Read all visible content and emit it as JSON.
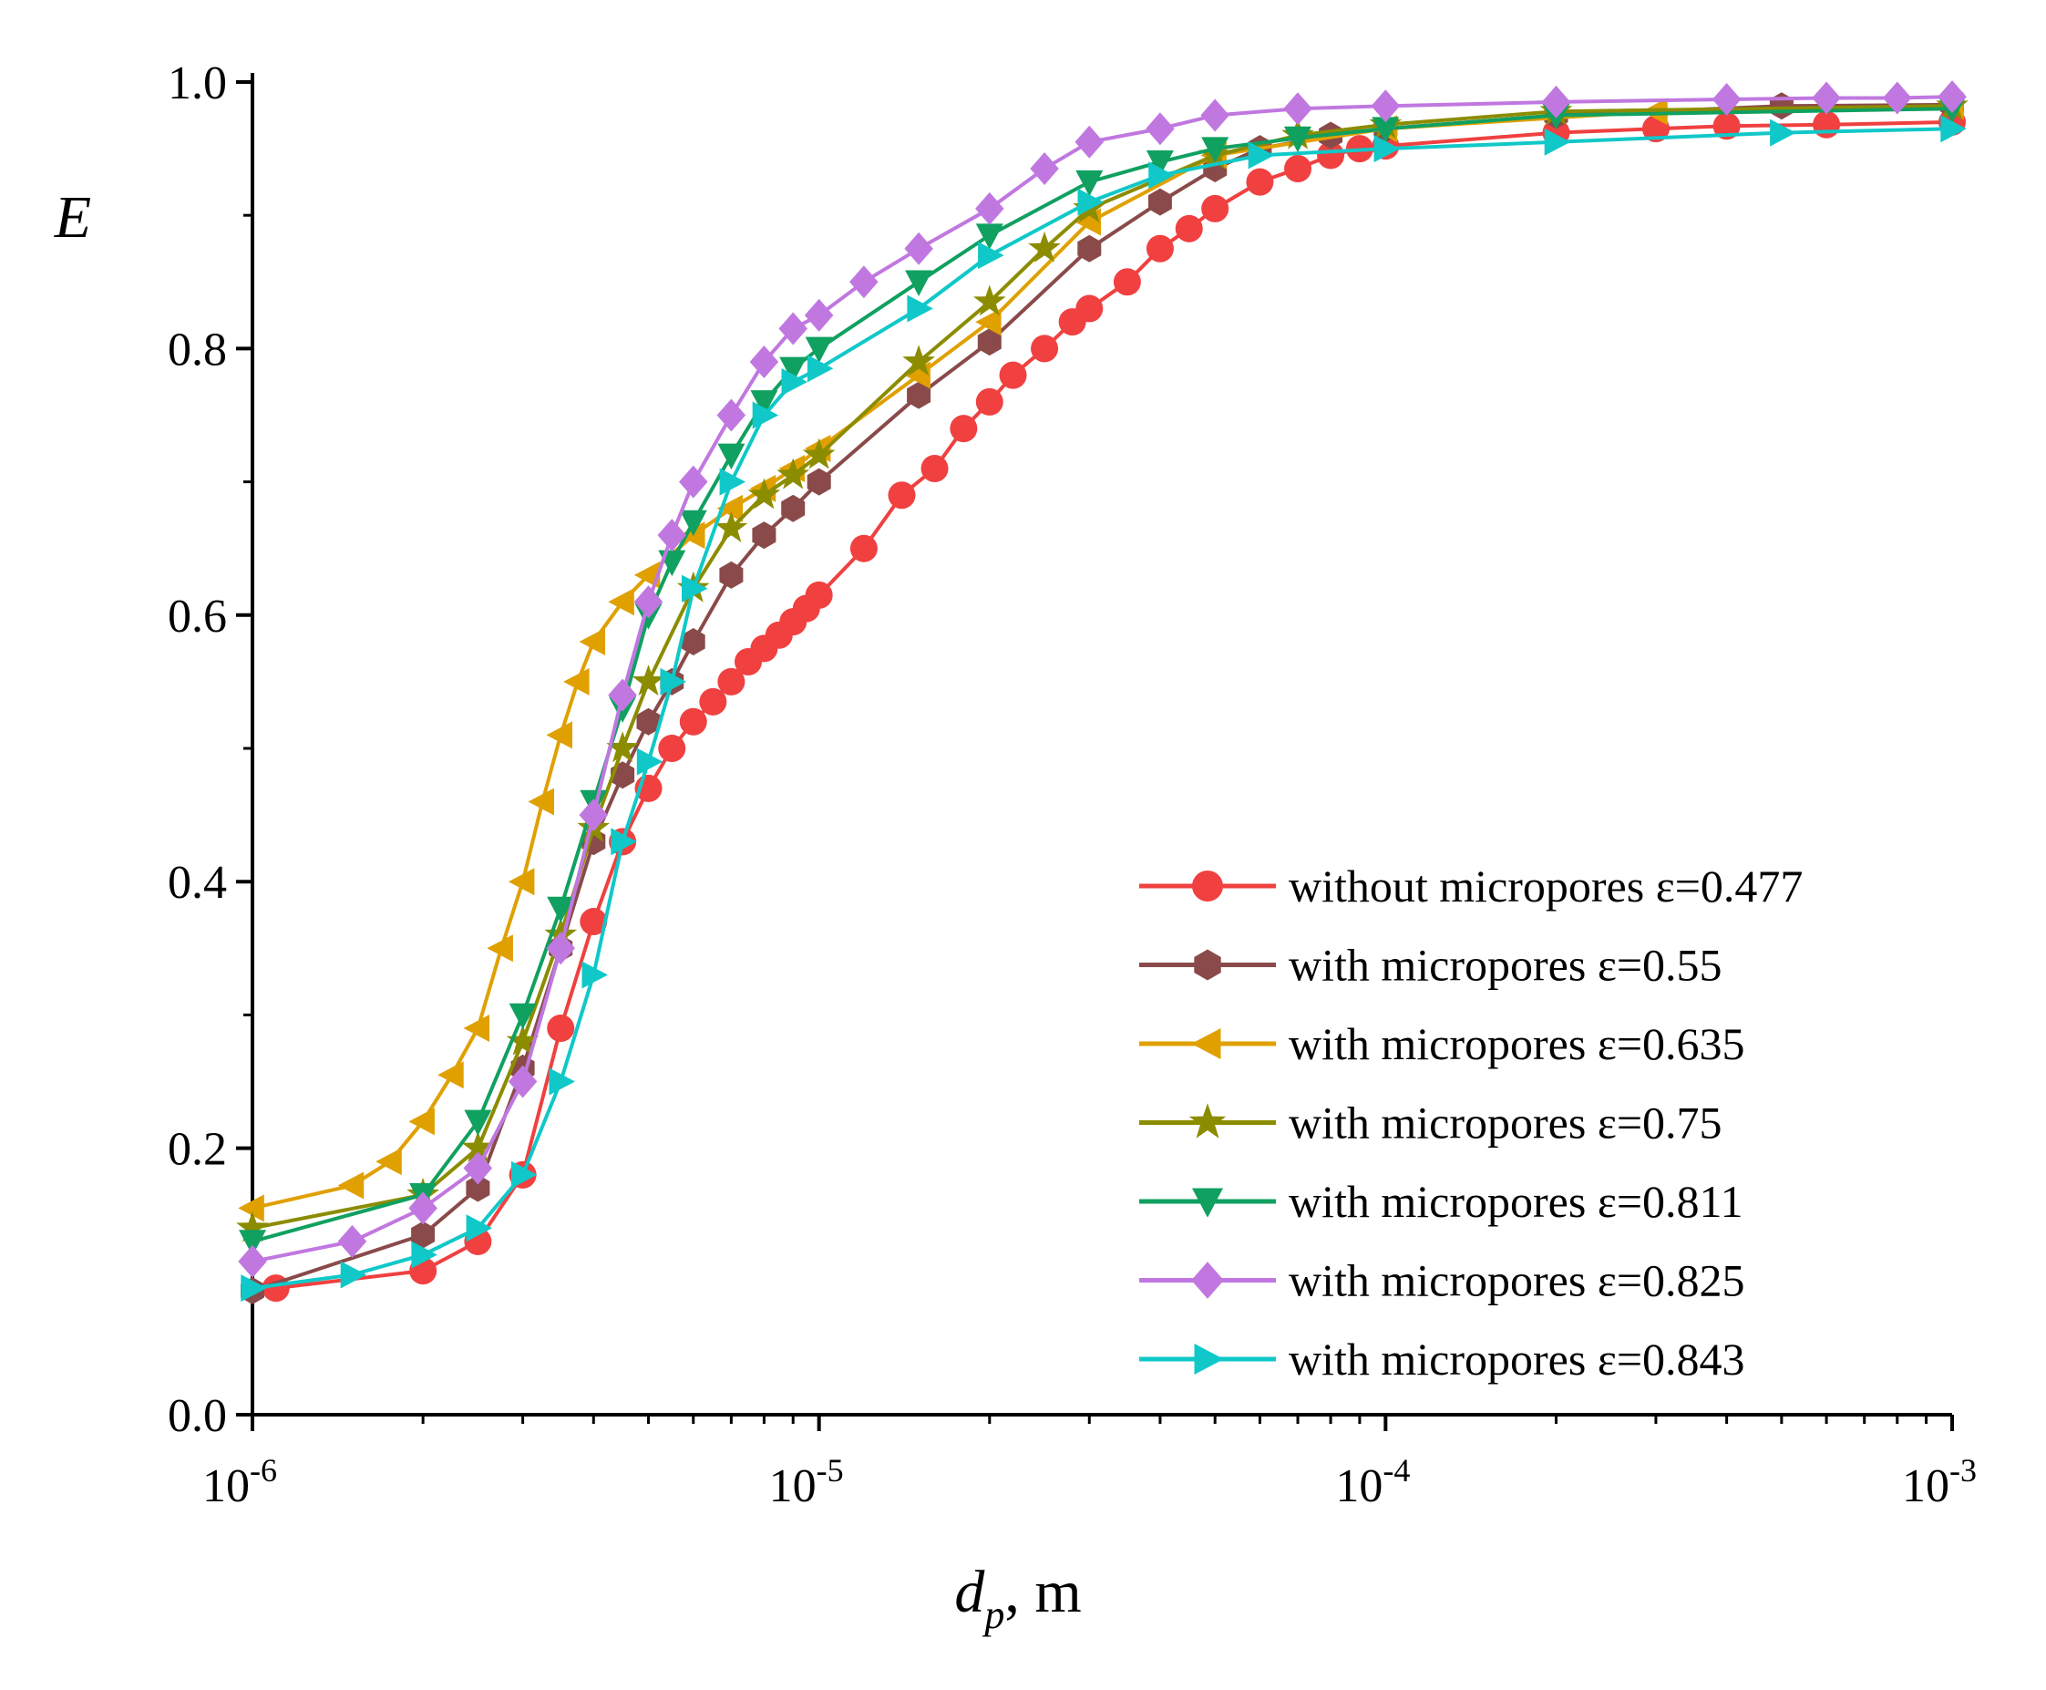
{
  "chart_data": {
    "type": "line",
    "title": "",
    "xlabel": "d_p, m",
    "xlabel_main": "d",
    "xlabel_sub": "p",
    "xlabel_rest": ", m",
    "ylabel": "E",
    "xscale": "log",
    "xlim": [
      1e-06,
      0.001
    ],
    "ylim": [
      0,
      1
    ],
    "x_ticks": [
      {
        "value": 1e-06,
        "base": "10",
        "exp": "-6"
      },
      {
        "value": 1e-05,
        "base": "10",
        "exp": "-5"
      },
      {
        "value": 0.0001,
        "base": "10",
        "exp": "-4"
      },
      {
        "value": 0.001,
        "base": "10",
        "exp": "-3"
      }
    ],
    "y_ticks": [
      {
        "value": 0.0,
        "label": "0.0"
      },
      {
        "value": 0.2,
        "label": "0.2"
      },
      {
        "value": 0.4,
        "label": "0.4"
      },
      {
        "value": 0.6,
        "label": "0.6"
      },
      {
        "value": 0.8,
        "label": "0.8"
      },
      {
        "value": 1.0,
        "label": "1.0"
      }
    ],
    "grid": false,
    "legend_position": "bottom-right",
    "series": [
      {
        "name": "without micropores ε=0.477",
        "color": "#f04040",
        "marker": "circle",
        "x": [
          1.1e-06,
          2e-06,
          2.5e-06,
          3e-06,
          3.5e-06,
          4e-06,
          4.5e-06,
          5e-06,
          5.5e-06,
          6e-06,
          6.5e-06,
          7e-06,
          7.5e-06,
          8e-06,
          8.5e-06,
          9e-06,
          9.5e-06,
          1e-05,
          1.2e-05,
          1.4e-05,
          1.6e-05,
          1.8e-05,
          2e-05,
          2.2e-05,
          2.5e-05,
          2.8e-05,
          3e-05,
          3.5e-05,
          4e-05,
          4.5e-05,
          5e-05,
          6e-05,
          7e-05,
          8e-05,
          9e-05,
          0.0001,
          0.0002,
          0.0003,
          0.0004,
          0.0006,
          0.001
        ],
        "y": [
          0.095,
          0.108,
          0.13,
          0.18,
          0.29,
          0.37,
          0.43,
          0.47,
          0.5,
          0.52,
          0.535,
          0.55,
          0.565,
          0.575,
          0.585,
          0.595,
          0.605,
          0.615,
          0.65,
          0.69,
          0.71,
          0.74,
          0.76,
          0.78,
          0.8,
          0.82,
          0.83,
          0.85,
          0.875,
          0.89,
          0.905,
          0.925,
          0.935,
          0.945,
          0.95,
          0.952,
          0.962,
          0.965,
          0.967,
          0.968,
          0.97
        ]
      },
      {
        "name": "with micropores ε=0.55",
        "color": "#8a4a4a",
        "marker": "hexagon",
        "x": [
          1e-06,
          2e-06,
          2.5e-06,
          3e-06,
          3.5e-06,
          4e-06,
          4.5e-06,
          5e-06,
          5.5e-06,
          6e-06,
          7e-06,
          8e-06,
          9e-06,
          1e-05,
          1.5e-05,
          2e-05,
          3e-05,
          4e-05,
          5e-05,
          6e-05,
          8e-05,
          0.0001,
          0.0002,
          0.0005,
          0.001
        ],
        "y": [
          0.093,
          0.135,
          0.17,
          0.26,
          0.35,
          0.43,
          0.48,
          0.52,
          0.55,
          0.58,
          0.63,
          0.66,
          0.68,
          0.7,
          0.765,
          0.805,
          0.875,
          0.91,
          0.935,
          0.95,
          0.96,
          0.965,
          0.975,
          0.982,
          0.983
        ]
      },
      {
        "name": "with micropores ε=0.635",
        "color": "#e0a000",
        "marker": "triangle-left",
        "x": [
          1e-06,
          1.5e-06,
          1.75e-06,
          2e-06,
          2.25e-06,
          2.5e-06,
          2.75e-06,
          3e-06,
          3.25e-06,
          3.5e-06,
          3.75e-06,
          4e-06,
          4.5e-06,
          5e-06,
          6e-06,
          7e-06,
          8e-06,
          9e-06,
          1e-05,
          1.5e-05,
          2e-05,
          3e-05,
          5e-05,
          0.0001,
          0.0003,
          0.001
        ],
        "y": [
          0.155,
          0.172,
          0.19,
          0.22,
          0.255,
          0.29,
          0.35,
          0.4,
          0.46,
          0.51,
          0.55,
          0.58,
          0.61,
          0.63,
          0.66,
          0.68,
          0.695,
          0.71,
          0.725,
          0.78,
          0.82,
          0.895,
          0.945,
          0.965,
          0.978,
          0.982
        ]
      },
      {
        "name": "with micropores ε=0.75",
        "color": "#8c8c00",
        "marker": "star",
        "x": [
          1e-06,
          2e-06,
          2.5e-06,
          3e-06,
          3.5e-06,
          4e-06,
          4.5e-06,
          5e-06,
          6e-06,
          7e-06,
          8e-06,
          9e-06,
          1e-05,
          1.5e-05,
          2e-05,
          2.5e-05,
          3e-05,
          5e-05,
          7e-05,
          0.0001,
          0.0002,
          0.001
        ],
        "y": [
          0.14,
          0.165,
          0.2,
          0.28,
          0.36,
          0.44,
          0.5,
          0.55,
          0.62,
          0.665,
          0.69,
          0.705,
          0.72,
          0.79,
          0.835,
          0.875,
          0.905,
          0.945,
          0.96,
          0.968,
          0.978,
          0.982
        ]
      },
      {
        "name": "with micropores ε=0.811",
        "color": "#10a060",
        "marker": "triangle-down",
        "x": [
          1e-06,
          2e-06,
          2.5e-06,
          3e-06,
          3.5e-06,
          4e-06,
          4.5e-06,
          5e-06,
          5.5e-06,
          6e-06,
          7e-06,
          8e-06,
          9e-06,
          1e-05,
          1.5e-05,
          2e-05,
          3e-05,
          4e-05,
          5e-05,
          7e-05,
          0.0001,
          0.0002,
          0.001
        ],
        "y": [
          0.13,
          0.165,
          0.22,
          0.3,
          0.38,
          0.46,
          0.53,
          0.6,
          0.64,
          0.67,
          0.72,
          0.76,
          0.785,
          0.8,
          0.85,
          0.885,
          0.925,
          0.94,
          0.95,
          0.958,
          0.965,
          0.975,
          0.98
        ]
      },
      {
        "name": "with micropores ε=0.825",
        "color": "#c078e0",
        "marker": "diamond",
        "x": [
          1e-06,
          1.5e-06,
          2e-06,
          2.5e-06,
          3e-06,
          3.5e-06,
          4e-06,
          4.5e-06,
          5e-06,
          5.5e-06,
          6e-06,
          7e-06,
          8e-06,
          9e-06,
          1e-05,
          1.2e-05,
          1.5e-05,
          2e-05,
          2.5e-05,
          3e-05,
          4e-05,
          5e-05,
          7e-05,
          0.0001,
          0.0002,
          0.0004,
          0.0006,
          0.0008,
          0.001
        ],
        "y": [
          0.115,
          0.13,
          0.155,
          0.185,
          0.25,
          0.35,
          0.45,
          0.54,
          0.61,
          0.66,
          0.7,
          0.75,
          0.79,
          0.815,
          0.825,
          0.85,
          0.875,
          0.905,
          0.935,
          0.955,
          0.965,
          0.975,
          0.98,
          0.982,
          0.985,
          0.987,
          0.988,
          0.988,
          0.989
        ]
      },
      {
        "name": "with micropores ε=0.843",
        "color": "#10c8c8",
        "marker": "triangle-right",
        "x": [
          1e-06,
          1.5e-06,
          2e-06,
          2.5e-06,
          3e-06,
          3.5e-06,
          4e-06,
          4.5e-06,
          5e-06,
          5.5e-06,
          6e-06,
          7e-06,
          8e-06,
          9e-06,
          1e-05,
          1.5e-05,
          2e-05,
          3e-05,
          4e-05,
          6e-05,
          0.0001,
          0.0002,
          0.0005,
          0.001
        ],
        "y": [
          0.095,
          0.105,
          0.12,
          0.14,
          0.18,
          0.25,
          0.33,
          0.43,
          0.49,
          0.55,
          0.62,
          0.7,
          0.75,
          0.775,
          0.785,
          0.83,
          0.87,
          0.91,
          0.93,
          0.945,
          0.95,
          0.955,
          0.962,
          0.965
        ]
      }
    ]
  }
}
